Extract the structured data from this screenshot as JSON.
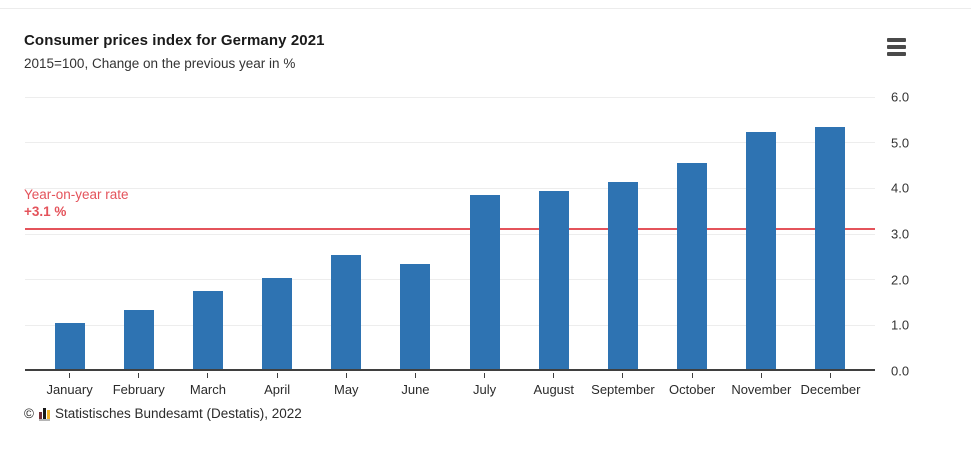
{
  "chart_data": {
    "type": "bar",
    "title": "Consumer prices index for Germany 2021",
    "subtitle": "2015=100, Change on the previous year in %",
    "categories": [
      "January",
      "February",
      "March",
      "April",
      "May",
      "June",
      "July",
      "August",
      "September",
      "October",
      "November",
      "December"
    ],
    "values": [
      1.0,
      1.3,
      1.7,
      2.0,
      2.5,
      2.3,
      3.8,
      3.9,
      4.1,
      4.5,
      5.2,
      5.3
    ],
    "unit": "%",
    "ylim": [
      0,
      6
    ],
    "yticks": [
      0,
      1,
      2,
      3,
      4,
      5,
      6
    ],
    "ytick_labels": [
      "0.0",
      "1.0",
      "2.0",
      "3.0",
      "4.0",
      "5.0",
      "6.0"
    ],
    "ytick_side": "right",
    "grid": true,
    "legend": "none",
    "bar_color": "#2e73b2",
    "reference_line": {
      "label": "Year-on-year rate",
      "value_label": "+3.1 %",
      "value": 3.1,
      "color": "#e4535b"
    }
  },
  "icons": {
    "menu": "hamburger-menu-icon",
    "logo": "destatis-bar-logo-icon"
  },
  "footer": {
    "copyright": "©",
    "source": "Statistisches Bundesamt (Destatis), 2022"
  },
  "colors": {
    "bar": "#2e73b2",
    "reference": "#e4535b",
    "grid": "#ededed",
    "axis": "#3f3f3f"
  }
}
